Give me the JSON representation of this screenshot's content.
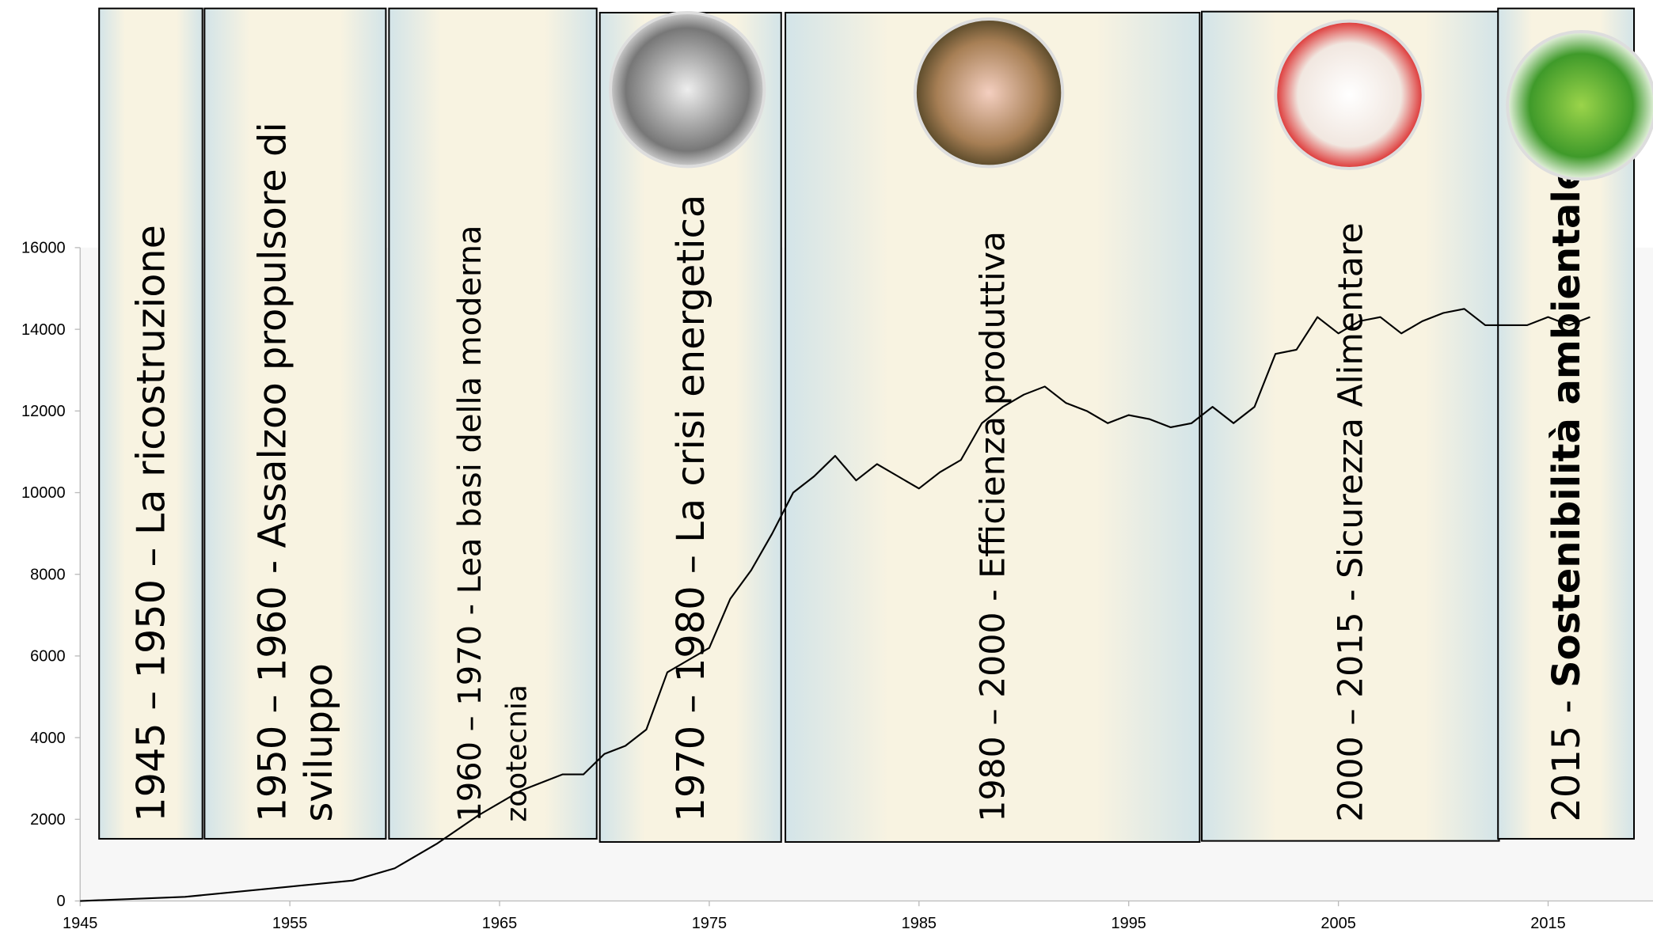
{
  "chart_data": {
    "type": "line",
    "x": [
      1945,
      1950,
      1955,
      1958,
      1960,
      1962,
      1964,
      1966,
      1968,
      1969,
      1970,
      1971,
      1972,
      1973,
      1974,
      1975,
      1976,
      1977,
      1978,
      1979,
      1980,
      1981,
      1982,
      1983,
      1984,
      1985,
      1986,
      1987,
      1988,
      1989,
      1990,
      1991,
      1992,
      1993,
      1994,
      1995,
      1996,
      1997,
      1998,
      1999,
      2000,
      2001,
      2002,
      2003,
      2004,
      2005,
      2006,
      2007,
      2008,
      2009,
      2010,
      2011,
      2012,
      2013,
      2014,
      2015,
      2016,
      2017
    ],
    "series": [
      {
        "color": "#000000",
        "values": [
          0,
          100,
          350,
          500,
          800,
          1400,
          2100,
          2700,
          3100,
          3100,
          3600,
          3800,
          4200,
          5600,
          5900,
          6200,
          7400,
          8100,
          9000,
          10000,
          10400,
          10900,
          10300,
          10700,
          10400,
          10100,
          10500,
          10800,
          11700,
          12100,
          12400,
          12600,
          12200,
          12000,
          11700,
          11900,
          11800,
          11600,
          11700,
          12100,
          11700,
          12100,
          13400,
          13500,
          14300,
          13900,
          14200,
          14300,
          13900,
          14200,
          14400,
          14500,
          14100,
          14100,
          14100,
          14300,
          14100,
          14300
        ]
      }
    ],
    "xlim": [
      1945,
      2020
    ],
    "ylim": [
      0,
      16000
    ],
    "xticks": [
      1945,
      1955,
      1965,
      1975,
      1985,
      1995,
      2005,
      2015
    ],
    "yticks": [
      0,
      2000,
      4000,
      6000,
      8000,
      10000,
      12000,
      14000,
      16000
    ],
    "panels": [
      {
        "lines": [
          "1945 – 1950 – La ricostruzione"
        ]
      },
      {
        "lines": [
          "1950 – 1960 -   Assalzoo propulsore di",
          "sviluppo"
        ]
      },
      {
        "lines": [
          "1960 – 1970  -  Lea basi della moderna",
          "zootecnia"
        ]
      },
      {
        "lines": [
          "1970 – 1980 – La crisi energetica"
        ]
      },
      {
        "lines": [
          "1980 – 2000 -   Efficienza produttiva"
        ]
      },
      {
        "lines": [
          "2000 – 2015 -   Sicurezza Alimentare"
        ]
      },
      {
        "lines": [
          "2015 -  "
        ],
        "bold": "Sostenibilità ambientale"
      }
    ]
  }
}
